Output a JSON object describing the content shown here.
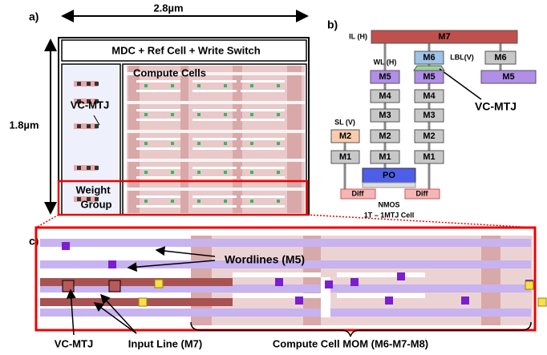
{
  "panel_a": {
    "label": "a)",
    "width": "2.8µm",
    "height": "1.8µm",
    "mdc": "MDC + Ref Cell + Write Switch",
    "compute": "Compute Cells",
    "vc_mtj": "VC-MTJ",
    "weight_group": [
      "Weight",
      "Group"
    ]
  },
  "panel_b": {
    "label": "b)",
    "il": "IL (H)",
    "m7": "M7",
    "wl": "WL (H)",
    "lbl": "LBL(V)",
    "sl": "SL (V)",
    "wl_stack": [
      "M5",
      "M4",
      "M3",
      "M2",
      "M1"
    ],
    "lbl_stack": [
      "M6",
      "M5",
      "M4",
      "M3",
      "M2",
      "M1"
    ],
    "sl_stack": [
      "M2",
      "M1"
    ],
    "right_stack": [
      "M6",
      "M5"
    ],
    "po": "PO",
    "diff": [
      "Diff",
      "Diff"
    ],
    "nmos": "NMOS",
    "cell": "1T – 1MTJ Cell",
    "vc_mtj": "VC-MTJ"
  },
  "panel_c": {
    "label": "c)",
    "wordlines": "Wordlines (M5)",
    "vc_mtj": "VC-MTJ",
    "input_line": "Input Line (M7)",
    "compute_mom": "Compute Cell MOM (M6-M7-M8)"
  }
}
